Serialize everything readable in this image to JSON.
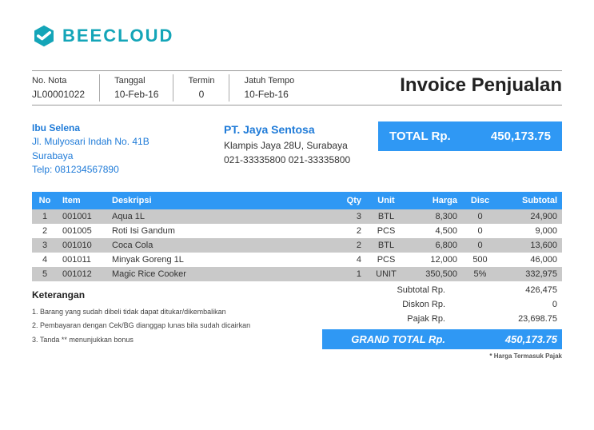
{
  "brand": {
    "name": "BEECLOUD",
    "brand_color": "#14a5b8"
  },
  "doc_title": "Invoice Penjualan",
  "meta": {
    "nota_label": "No. Nota",
    "nota_value": "JL00001022",
    "tanggal_label": "Tanggal",
    "tanggal_value": "10-Feb-16",
    "termin_label": "Termin",
    "termin_value": "0",
    "jatuh_label": "Jatuh Tempo",
    "jatuh_value": "10-Feb-16"
  },
  "customer": {
    "name": "Ibu Selena",
    "address": "Jl. Mulyosari Indah No. 41B",
    "city": "Surabaya",
    "phone": "Telp: 081234567890"
  },
  "company": {
    "name": "PT. Jaya Sentosa",
    "address": "Klampis Jaya 28U, Surabaya",
    "phones": "021-33335800 021-33335800"
  },
  "total_box": {
    "label": "TOTAL Rp.",
    "value": "450,173.75"
  },
  "columns": {
    "no": "No",
    "item": "Item",
    "desk": "Deskripsi",
    "qty": "Qty",
    "unit": "Unit",
    "harga": "Harga",
    "disc": "Disc",
    "subtotal": "Subtotal"
  },
  "rows": [
    {
      "no": "1",
      "item": "001001",
      "desk": "Aqua 1L",
      "qty": "3",
      "unit": "BTL",
      "harga": "8,300",
      "disc": "0",
      "subtotal": "24,900"
    },
    {
      "no": "2",
      "item": "001005",
      "desk": "Roti Isi Gandum",
      "qty": "2",
      "unit": "PCS",
      "harga": "4,500",
      "disc": "0",
      "subtotal": "9,000"
    },
    {
      "no": "3",
      "item": "001010",
      "desk": "Coca Cola",
      "qty": "2",
      "unit": "BTL",
      "harga": "6,800",
      "disc": "0",
      "subtotal": "13,600"
    },
    {
      "no": "4",
      "item": "001011",
      "desk": "Minyak Goreng 1L",
      "qty": "4",
      "unit": "PCS",
      "harga": "12,000",
      "disc": "500",
      "subtotal": "46,000"
    },
    {
      "no": "5",
      "item": "001012",
      "desk": "Magic Rice Cooker",
      "qty": "1",
      "unit": "UNIT",
      "harga": "350,500",
      "disc": "5%",
      "subtotal": "332,975"
    }
  ],
  "notes": {
    "heading": "Keterangan",
    "n1": "1. Barang yang sudah dibeli tidak dapat ditukar/dikembalikan",
    "n2": "2. Pembayaran dengan Cek/BG dianggap lunas bila sudah dicairkan",
    "n3": "3. Tanda ** menunjukkan bonus"
  },
  "summary": {
    "subtotal_label": "Subtotal Rp.",
    "subtotal_value": "426,475",
    "diskon_label": "Diskon Rp.",
    "diskon_value": "0",
    "pajak_label": "Pajak Rp.",
    "pajak_value": "23,698.75",
    "grand_label": "GRAND TOTAL Rp.",
    "grand_value": "450,173.75",
    "taxnote": "* Harga Termasuk Pajak"
  },
  "style": {
    "accent": "#2f98f4",
    "row_alt_bg": "#c9c9c9",
    "link_blue": "#1f7bd8"
  }
}
